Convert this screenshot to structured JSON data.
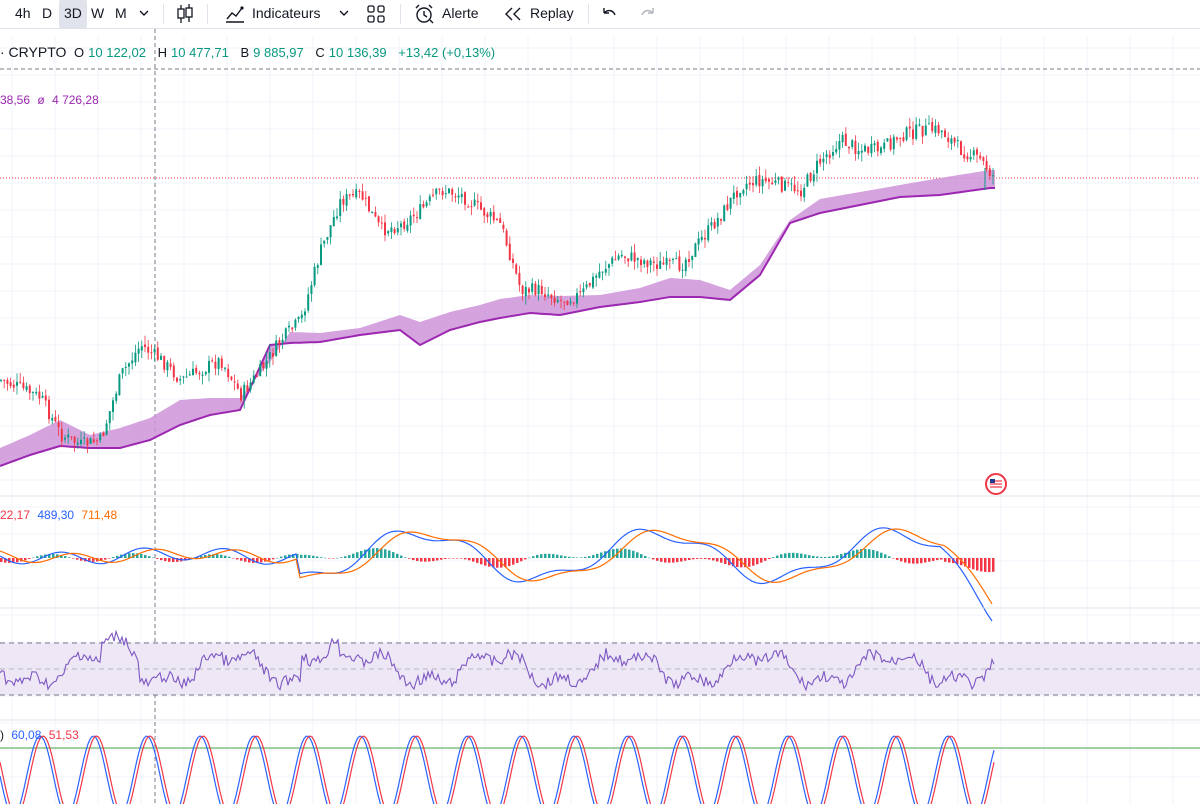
{
  "toolbar": {
    "timeframes": [
      "4h",
      "D",
      "3D",
      "W",
      "M"
    ],
    "active_timeframe": "3D",
    "indicators_label": "Indicateurs",
    "alert_label": "Alerte",
    "replay_label": "Replay"
  },
  "legend": {
    "symbol_suffix": "· CRYPTO",
    "open_label": "O",
    "open": "10 122,02",
    "high_label": "H",
    "high": "10 477,71",
    "low_label": "B",
    "low": "9 885,97",
    "close_label": "C",
    "close": "10 136,39",
    "change": "+13,42 (+0,13%)"
  },
  "ma_legend": {
    "value1": "38,56",
    "symbol": "ø",
    "value2": "4 726,28"
  },
  "macd_legend": {
    "v1": "22,17",
    "v2": "489,30",
    "v3": "711,48"
  },
  "stoch_legend": {
    "v1": "60,08",
    "v2": "51,53"
  },
  "colors": {
    "up": "#089981",
    "down": "#f23645",
    "band": "#ce93d8",
    "ma_line": "#9c27b0",
    "macd": "#2962ff",
    "signal": "#ff6d00",
    "rsi": "#7e57c2",
    "rsi_band": "#ede7f6",
    "stoch_k": "#2962ff",
    "stoch_d": "#f23645",
    "stoch_level": "#43a047"
  },
  "chart_data": {
    "type": "line",
    "title": "· CRYPTO 3D",
    "series": [
      {
        "name": "close_trend",
        "x": [
          0,
          20,
          40,
          60,
          80,
          100,
          120,
          140,
          160,
          180,
          200,
          220,
          240,
          260,
          280,
          300,
          320,
          340,
          360,
          380,
          400,
          420,
          440,
          460,
          480,
          500,
          520,
          540,
          560,
          580,
          600,
          620,
          640,
          660,
          680,
          700,
          720,
          740,
          760,
          780,
          800,
          820,
          840,
          860,
          880,
          900,
          920,
          940,
          960,
          980,
          995
        ],
        "y": [
          380,
          388,
          398,
          435,
          445,
          440,
          375,
          345,
          360,
          380,
          370,
          360,
          395,
          370,
          340,
          320,
          250,
          200,
          195,
          230,
          225,
          210,
          190,
          195,
          210,
          225,
          290,
          290,
          300,
          295,
          270,
          255,
          260,
          265,
          265,
          240,
          215,
          185,
          180,
          185,
          190,
          160,
          140,
          150,
          150,
          135,
          130,
          130,
          150,
          160,
          180
        ]
      },
      {
        "name": "ma_band_upper",
        "x": [
          0,
          30,
          60,
          90,
          120,
          150,
          180,
          210,
          240,
          270,
          290,
          320,
          360,
          400,
          420,
          450,
          480,
          500,
          530,
          560,
          600,
          640,
          670,
          700,
          730,
          760,
          790,
          820,
          860,
          900,
          940,
          990
        ],
        "y": [
          448,
          435,
          420,
          435,
          428,
          418,
          400,
          398,
          398,
          362,
          332,
          333,
          328,
          315,
          322,
          312,
          305,
          299,
          295,
          296,
          295,
          288,
          278,
          280,
          290,
          265,
          220,
          199,
          192,
          185,
          178,
          170
        ]
      },
      {
        "name": "ma_band_lower",
        "x": [
          0,
          30,
          60,
          90,
          120,
          150,
          180,
          210,
          240,
          270,
          290,
          320,
          360,
          400,
          420,
          450,
          480,
          500,
          530,
          560,
          600,
          640,
          670,
          700,
          730,
          760,
          790,
          820,
          860,
          900,
          940,
          990
        ],
        "y": [
          466,
          455,
          446,
          448,
          448,
          440,
          425,
          415,
          410,
          345,
          343,
          342,
          335,
          330,
          345,
          330,
          322,
          318,
          313,
          315,
          307,
          302,
          297,
          297,
          300,
          275,
          223,
          213,
          205,
          197,
          195,
          188
        ]
      }
    ],
    "xlabel": "",
    "ylabel": ""
  }
}
